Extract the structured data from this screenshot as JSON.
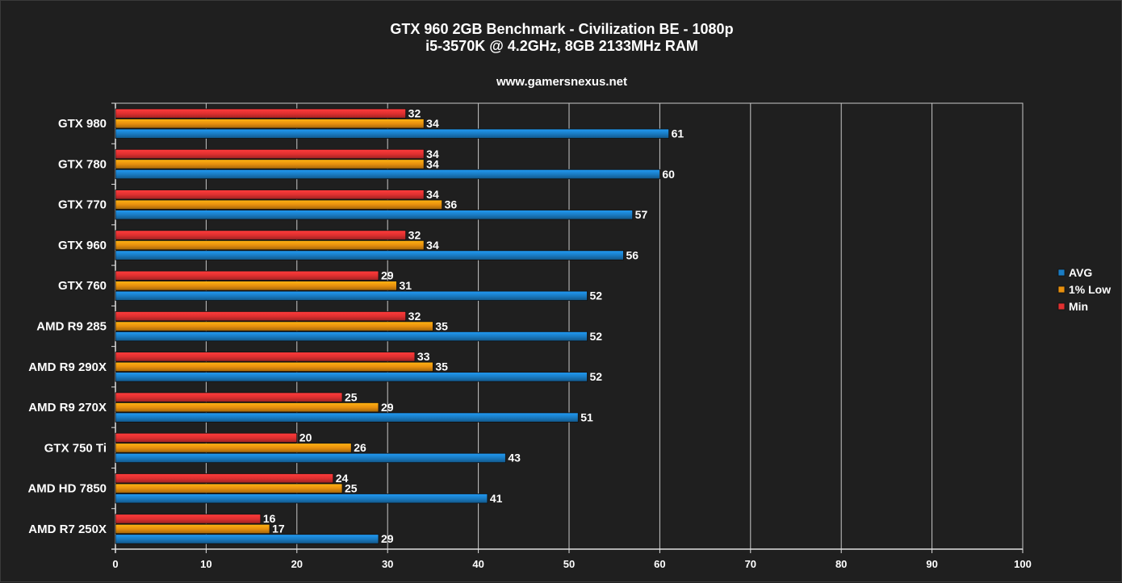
{
  "chart_data": {
    "type": "bar",
    "orientation": "horizontal",
    "title": "GTX 960 2GB Benchmark - Civilization BE - 1080p",
    "subtitle": "i5-3570K @ 4.2GHz, 8GB 2133MHz RAM",
    "source": "www.gamersnexus.net",
    "categories": [
      "GTX 980",
      "GTX 780",
      "GTX 770",
      "GTX 960",
      "GTX 760",
      "AMD R9 285",
      "AMD R9 290X",
      "AMD R9 270X",
      "GTX 750 Ti",
      "AMD HD 7850",
      "AMD R7 250X"
    ],
    "series": [
      {
        "name": "Min",
        "color": "#e03030",
        "values": [
          32,
          34,
          34,
          32,
          29,
          32,
          33,
          25,
          20,
          24,
          16
        ]
      },
      {
        "name": "1% Low",
        "color": "#e8900e",
        "values": [
          34,
          34,
          36,
          34,
          31,
          35,
          35,
          29,
          26,
          25,
          17
        ]
      },
      {
        "name": "AVG",
        "color": "#1a7cc4",
        "values": [
          61,
          60,
          57,
          56,
          52,
          52,
          52,
          51,
          43,
          41,
          29
        ]
      }
    ],
    "legend_order": [
      "AVG",
      "1% Low",
      "Min"
    ],
    "legend_position": "right",
    "xlim": [
      0,
      100
    ],
    "xticks": [
      0,
      10,
      20,
      30,
      40,
      50,
      60,
      70,
      80,
      90,
      100
    ],
    "grid": true,
    "xlabel": "",
    "ylabel": ""
  }
}
